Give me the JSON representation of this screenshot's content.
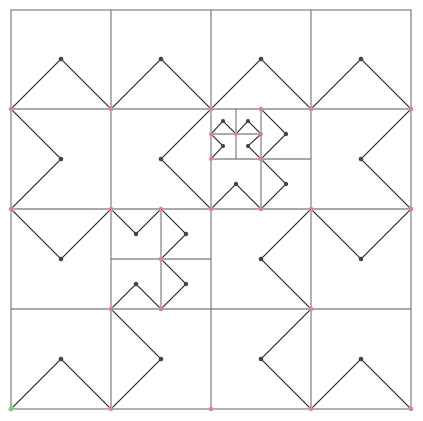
{
  "title": "",
  "colors": {
    "background": "#ffffff",
    "grid": "#555555",
    "curve": "#222222",
    "vertex_dark": "#444444",
    "vertex_red": "#e88080",
    "vertex_green": "#7fcf7f"
  },
  "figure": {
    "description_kind": "recursive square subdivision with chevron (Hilbert-like) path",
    "grid": {
      "rows": 4,
      "cols": 4
    },
    "subdivided_cells": [
      {
        "row": 1,
        "col": 2,
        "subdivision": 2,
        "nested": [
          {
            "row": 0,
            "col": 0,
            "subdivision": 2
          }
        ]
      },
      {
        "row": 2,
        "col": 1,
        "subdivision": 2
      }
    ],
    "chevrons": [
      {
        "cell": [
          0,
          0
        ],
        "shape": "up"
      },
      {
        "cell": [
          0,
          1
        ],
        "shape": "up"
      },
      {
        "cell": [
          0,
          2
        ],
        "shape": "up"
      },
      {
        "cell": [
          0,
          3
        ],
        "shape": "up"
      },
      {
        "cell": [
          1,
          0
        ],
        "shape": "right"
      },
      {
        "cell": [
          1,
          1
        ],
        "shape": "left"
      },
      {
        "cell": [
          1,
          3
        ],
        "shape": "left"
      },
      {
        "cell": [
          2,
          0
        ],
        "shape": "down"
      },
      {
        "cell": [
          2,
          2
        ],
        "shape": "left"
      },
      {
        "cell": [
          2,
          3
        ],
        "shape": "down"
      },
      {
        "cell": [
          3,
          0
        ],
        "shape": "up"
      },
      {
        "cell": [
          3,
          1
        ],
        "shape": "right"
      },
      {
        "cell": [
          3,
          2
        ],
        "shape": "left"
      },
      {
        "cell": [
          3,
          3
        ],
        "shape": "up"
      }
    ]
  }
}
